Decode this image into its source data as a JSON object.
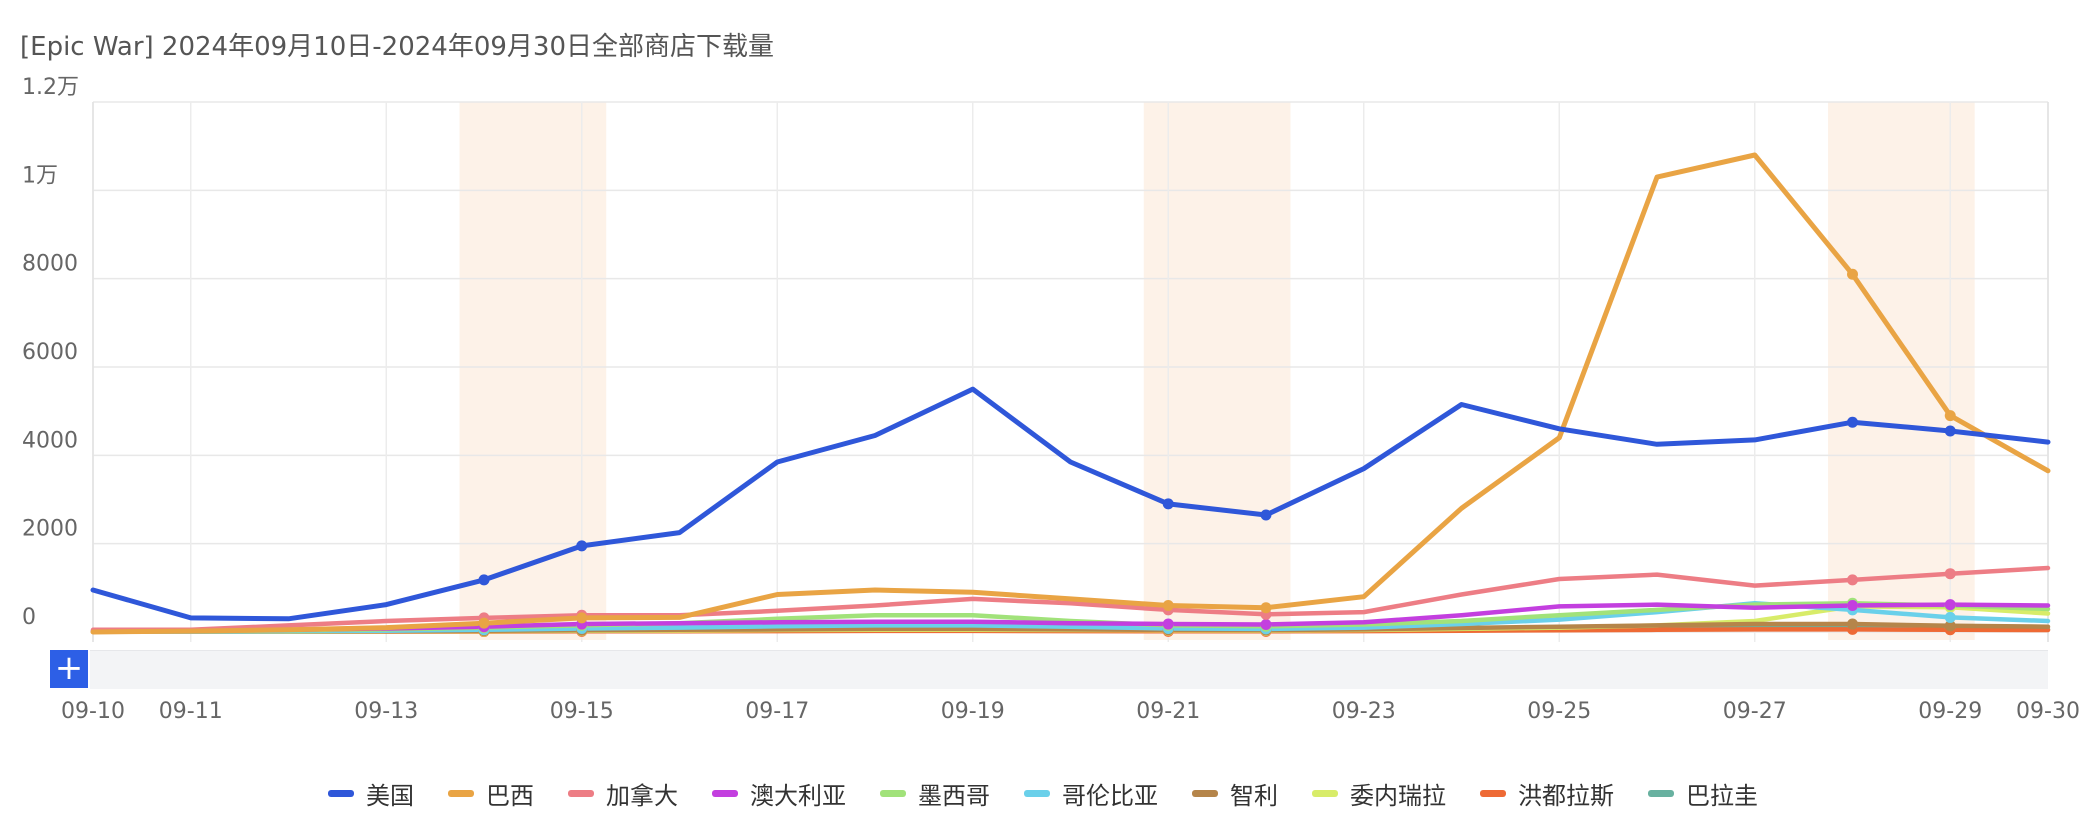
{
  "title": "[Epic War] 2024年09月10日-2024年09月30日全部商店下载量",
  "zoom_label": "+",
  "chart_data": {
    "type": "line",
    "title": "[Epic War] 2024年09月10日-2024年09月30日全部商店下载量",
    "xlabel": "",
    "ylabel": "",
    "ylim": [
      0,
      12000
    ],
    "y_ticks": [
      {
        "value": 0,
        "label": "0"
      },
      {
        "value": 2000,
        "label": "2000"
      },
      {
        "value": 4000,
        "label": "4000"
      },
      {
        "value": 6000,
        "label": "6000"
      },
      {
        "value": 8000,
        "label": "8000"
      },
      {
        "value": 10000,
        "label": "1万"
      },
      {
        "value": 12000,
        "label": "1.2万"
      }
    ],
    "x": [
      "09-10",
      "09-11",
      "09-12",
      "09-13",
      "09-14",
      "09-15",
      "09-16",
      "09-17",
      "09-18",
      "09-19",
      "09-20",
      "09-21",
      "09-22",
      "09-23",
      "09-24",
      "09-25",
      "09-26",
      "09-27",
      "09-28",
      "09-29",
      "09-30"
    ],
    "x_tick_labels": [
      "09-10",
      "09-11",
      "",
      "09-13",
      "",
      "09-15",
      "",
      "09-17",
      "",
      "09-19",
      "",
      "09-21",
      "",
      "09-23",
      "",
      "09-25",
      "",
      "09-27",
      "",
      "09-29",
      "09-30"
    ],
    "weekend_bands": [
      [
        "09-14",
        "09-15"
      ],
      [
        "09-21",
        "09-22"
      ],
      [
        "09-28",
        "09-29"
      ]
    ],
    "marker_dates": [
      "09-14",
      "09-15",
      "09-21",
      "09-22",
      "09-28",
      "09-29"
    ],
    "grid": true,
    "legend_position": "bottom",
    "series": [
      {
        "name": "美国",
        "color": "#2f57d9",
        "values": [
          950,
          320,
          300,
          620,
          1180,
          1950,
          2250,
          3850,
          4450,
          5500,
          3850,
          2900,
          2650,
          3700,
          5150,
          4600,
          4250,
          4350,
          4750,
          4550,
          4300
        ]
      },
      {
        "name": "巴西",
        "color": "#e9a444",
        "values": [
          0,
          20,
          50,
          100,
          200,
          320,
          330,
          850,
          950,
          900,
          750,
          600,
          550,
          800,
          2800,
          4400,
          10300,
          10800,
          8100,
          4900,
          3650
        ]
      },
      {
        "name": "加拿大",
        "color": "#ed7d85",
        "values": [
          50,
          50,
          150,
          250,
          320,
          380,
          380,
          480,
          600,
          750,
          650,
          500,
          400,
          450,
          850,
          1200,
          1300,
          1050,
          1180,
          1320,
          1450
        ]
      },
      {
        "name": "澳大利亚",
        "color": "#c33fdf",
        "values": [
          30,
          30,
          50,
          80,
          120,
          180,
          200,
          220,
          230,
          230,
          200,
          180,
          170,
          220,
          380,
          580,
          620,
          550,
          600,
          620,
          600
        ]
      },
      {
        "name": "墨西哥",
        "color": "#a1e27a",
        "values": [
          20,
          20,
          40,
          60,
          100,
          150,
          200,
          300,
          380,
          380,
          250,
          150,
          130,
          170,
          250,
          380,
          500,
          620,
          650,
          600,
          520
        ]
      },
      {
        "name": "哥伦比亚",
        "color": "#6ad0ea",
        "values": [
          10,
          10,
          20,
          30,
          50,
          80,
          100,
          130,
          150,
          150,
          120,
          80,
          70,
          100,
          180,
          280,
          450,
          650,
          500,
          330,
          250
        ]
      },
      {
        "name": "智利",
        "color": "#b5854a",
        "values": [
          10,
          10,
          15,
          20,
          30,
          40,
          50,
          60,
          70,
          70,
          60,
          50,
          45,
          60,
          90,
          120,
          150,
          180,
          180,
          140,
          120
        ]
      },
      {
        "name": "委内瑞拉",
        "color": "#d8ec69",
        "values": [
          5,
          5,
          10,
          15,
          20,
          30,
          35,
          45,
          50,
          50,
          45,
          40,
          35,
          45,
          70,
          100,
          150,
          250,
          580,
          560,
          420
        ]
      },
      {
        "name": "洪都拉斯",
        "color": "#ee6a35",
        "values": [
          5,
          5,
          5,
          10,
          10,
          15,
          15,
          20,
          25,
          25,
          20,
          15,
          15,
          20,
          30,
          40,
          50,
          60,
          60,
          50,
          45
        ]
      },
      {
        "name": "巴拉圭",
        "color": "#68b1a0",
        "values": [
          20,
          15,
          20,
          30,
          40,
          50,
          55,
          60,
          70,
          70,
          60,
          50,
          45,
          55,
          70,
          80,
          90,
          100,
          100,
          80,
          60
        ]
      }
    ]
  }
}
